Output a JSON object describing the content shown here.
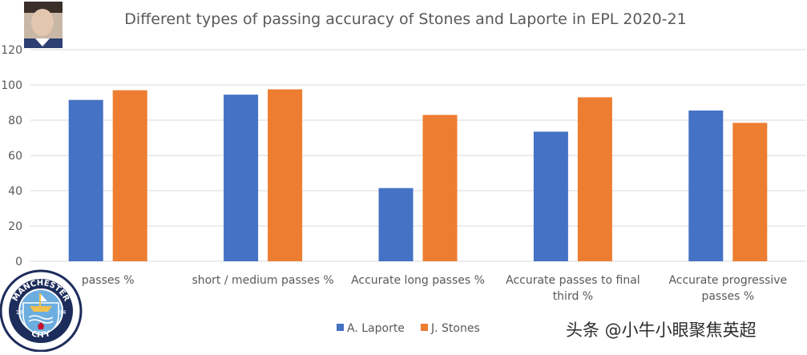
{
  "chart_data": {
    "type": "bar",
    "title": "Different types of passing accuracy of Stones and Laporte in EPL 2020-21",
    "xlabel": "",
    "ylabel": "",
    "ylim": [
      0,
      120
    ],
    "yticks": [
      0,
      20,
      40,
      60,
      80,
      100,
      120
    ],
    "grid": true,
    "legend_position": "bottom",
    "categories": [
      [
        "passes %"
      ],
      [
        "short / medium passes %"
      ],
      [
        "Accurate long passes %"
      ],
      [
        "Accurate passes to final",
        "third %"
      ],
      [
        "Accurate progressive",
        "passes %"
      ]
    ],
    "series": [
      {
        "name": "A. Laporte",
        "color": "#4472C4",
        "values": [
          91.5,
          94.5,
          41.5,
          73.5,
          85.5
        ]
      },
      {
        "name": "J. Stones",
        "color": "#ED7D31",
        "values": [
          97,
          97.5,
          83,
          93,
          78.5
        ]
      }
    ]
  },
  "logo": {
    "text": "MANCHESTER CITY",
    "year_left": "18",
    "year_right": "94"
  },
  "watermark": "头条 @小牛小眼聚焦英超",
  "colors": {
    "grid": "#d9d9d9",
    "axis_text": "#595959",
    "title_text": "#595959",
    "logo_blue": "#6caddf",
    "logo_navy": "#1c2c5b",
    "logo_gold": "#f2c14e",
    "logo_red": "#c8102e"
  }
}
